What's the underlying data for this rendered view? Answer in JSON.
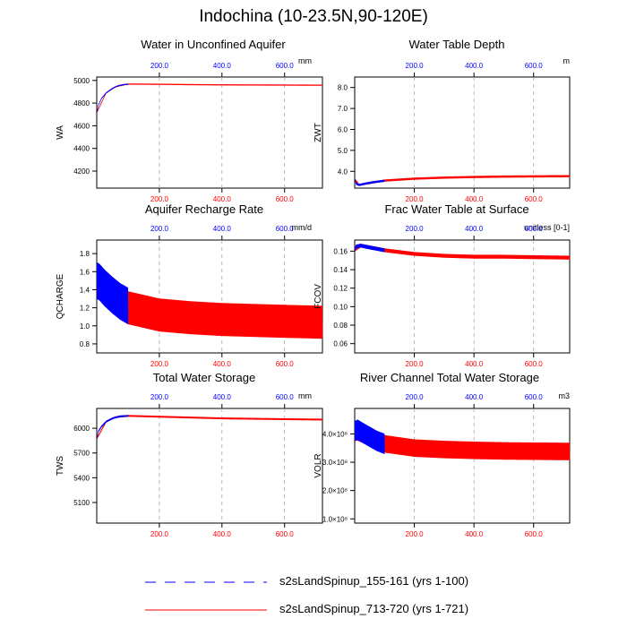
{
  "figure": {
    "title": "Indochina (10-23.5N,90-120E)",
    "legend": [
      {
        "label": "s2sLandSpinup_155-161 (yrs 1-100)",
        "color": "#0000ff",
        "style": "dashed"
      },
      {
        "label": "s2sLandSpinup_713-720 (yrs 1-721)",
        "color": "#ff0000",
        "style": "solid"
      }
    ]
  },
  "chart_data": [
    {
      "id": "wa",
      "type": "line",
      "title": "Water in Unconfined Aquifer",
      "units": "mm",
      "ylabel": "WA",
      "xlim": [
        0,
        721
      ],
      "ylim": [
        4050,
        5030
      ],
      "yticks": [
        4200,
        4400,
        4600,
        4800,
        5000
      ],
      "ytick_labels": [
        "4200",
        "4400",
        "4600",
        "4800",
        "5000"
      ],
      "xticks_top": [
        200,
        400,
        600
      ],
      "xtick_labels_top": [
        "200.0",
        "400.0",
        "600.0"
      ],
      "xticks_bottom": [
        200,
        400,
        600
      ],
      "xtick_labels_bottom": [
        "200.0",
        "400.0",
        "600.0"
      ],
      "series": [
        {
          "name": "s2sLandSpinup_155-161 (yrs 1-100)",
          "color": "#0000ff",
          "x": [
            1,
            5,
            15,
            30,
            50,
            70,
            90,
            100
          ],
          "y": [
            4720,
            4780,
            4840,
            4890,
            4930,
            4955,
            4965,
            4965
          ],
          "amp": 3
        },
        {
          "name": "s2sLandSpinup_713-720 (yrs 1-721)",
          "color": "#ff0000",
          "x": [
            1,
            30,
            60,
            100,
            200,
            300,
            400,
            500,
            600,
            721
          ],
          "y": [
            4720,
            4890,
            4945,
            4968,
            4966,
            4963,
            4961,
            4960,
            4959,
            4958
          ],
          "amp": 3
        }
      ]
    },
    {
      "id": "zwt",
      "type": "line",
      "title": "Water Table Depth",
      "units": "m",
      "ylabel": "ZWT",
      "xlim": [
        0,
        721
      ],
      "ylim": [
        3.2,
        8.5
      ],
      "yticks": [
        4,
        5,
        6,
        7,
        8
      ],
      "ytick_labels": [
        "4.0",
        "5.0",
        "6.0",
        "7.0",
        "8.0"
      ],
      "xticks_top": [
        200,
        400,
        600
      ],
      "xtick_labels_top": [
        "200.0",
        "400.0",
        "600.0"
      ],
      "xticks_bottom": [
        200,
        400,
        600
      ],
      "xtick_labels_bottom": [
        "200.0",
        "400.0",
        "600.0"
      ],
      "series": [
        {
          "name": "s2sLandSpinup_155-161 (yrs 1-100)",
          "color": "#0000ff",
          "x": [
            1,
            5,
            15,
            30,
            60,
            100
          ],
          "y": [
            3.6,
            3.4,
            3.35,
            3.4,
            3.48,
            3.55
          ],
          "amp": 0.04
        },
        {
          "name": "s2sLandSpinup_713-720 (yrs 1-721)",
          "color": "#ff0000",
          "x": [
            1,
            15,
            40,
            100,
            200,
            300,
            400,
            500,
            600,
            721
          ],
          "y": [
            3.6,
            3.35,
            3.42,
            3.56,
            3.65,
            3.7,
            3.73,
            3.75,
            3.76,
            3.77
          ],
          "amp": 0.04
        }
      ]
    },
    {
      "id": "qcharge",
      "type": "line",
      "title": "Aquifer Recharge Rate",
      "units": "mm/d",
      "ylabel": "QCHARGE",
      "xlim": [
        0,
        721
      ],
      "ylim": [
        0.7,
        1.95
      ],
      "yticks": [
        0.8,
        1.0,
        1.2,
        1.4,
        1.6,
        1.8
      ],
      "ytick_labels": [
        "0.8",
        "1.0",
        "1.2",
        "1.4",
        "1.6",
        "1.8"
      ],
      "xticks_top": [
        200,
        400,
        600
      ],
      "xtick_labels_top": [
        "200.0",
        "400.0",
        "600.0"
      ],
      "xticks_bottom": [
        200,
        400,
        600
      ],
      "xtick_labels_bottom": [
        "200.0",
        "400.0",
        "600.0"
      ],
      "series": [
        {
          "name": "s2sLandSpinup_155-161 (yrs 1-100)",
          "color": "#0000ff",
          "x": [
            1,
            10,
            25,
            50,
            75,
            100
          ],
          "y": [
            1.5,
            1.48,
            1.42,
            1.34,
            1.27,
            1.22
          ],
          "amp": 0.2
        },
        {
          "name": "s2sLandSpinup_713-720 (yrs 1-721)",
          "color": "#ff0000",
          "x": [
            1,
            50,
            100,
            200,
            300,
            400,
            500,
            600,
            721
          ],
          "y": [
            1.5,
            1.34,
            1.2,
            1.12,
            1.09,
            1.07,
            1.06,
            1.05,
            1.04
          ],
          "amp": 0.18
        }
      ]
    },
    {
      "id": "fcov",
      "type": "line",
      "title": "Frac Water Table at Surface",
      "units": "unitless [0-1]",
      "ylabel": "FCOV",
      "xlim": [
        0,
        721
      ],
      "ylim": [
        0.05,
        0.172
      ],
      "yticks": [
        0.06,
        0.08,
        0.1,
        0.12,
        0.14,
        0.16
      ],
      "ytick_labels": [
        "0.06",
        "0.08",
        "0.10",
        "0.12",
        "0.14",
        "0.16"
      ],
      "xticks_top": [
        200,
        400,
        600
      ],
      "xtick_labels_top": [
        "200.0",
        "400.0",
        "600.0"
      ],
      "xticks_bottom": [
        200,
        400,
        600
      ],
      "xtick_labels_bottom": [
        "200.0",
        "400.0",
        "600.0"
      ],
      "series": [
        {
          "name": "s2sLandSpinup_155-161 (yrs 1-100)",
          "color": "#0000ff",
          "x": [
            1,
            5,
            20,
            50,
            100
          ],
          "y": [
            0.162,
            0.165,
            0.166,
            0.164,
            0.161
          ],
          "amp": 0.0018
        },
        {
          "name": "s2sLandSpinup_713-720 (yrs 1-721)",
          "color": "#ff0000",
          "x": [
            1,
            20,
            100,
            200,
            300,
            400,
            500,
            600,
            721
          ],
          "y": [
            0.162,
            0.166,
            0.161,
            0.157,
            0.155,
            0.154,
            0.154,
            0.1535,
            0.153
          ],
          "amp": 0.0018
        }
      ]
    },
    {
      "id": "tws",
      "type": "line",
      "title": "Total Water Storage",
      "units": "mm",
      "ylabel": "TWS",
      "xlim": [
        0,
        721
      ],
      "ylim": [
        4850,
        6240
      ],
      "yticks": [
        5100,
        5400,
        5700,
        6000
      ],
      "ytick_labels": [
        "5100",
        "5400",
        "5700",
        "6000"
      ],
      "xticks_top": [
        200,
        400,
        600
      ],
      "xtick_labels_top": [
        "200.0",
        "400.0",
        "600.0"
      ],
      "xticks_bottom": [
        200,
        400,
        600
      ],
      "xtick_labels_bottom": [
        "200.0",
        "400.0",
        "600.0"
      ],
      "series": [
        {
          "name": "s2sLandSpinup_155-161 (yrs 1-100)",
          "color": "#0000ff",
          "x": [
            1,
            5,
            15,
            30,
            50,
            75,
            100
          ],
          "y": [
            5880,
            5960,
            6020,
            6080,
            6120,
            6145,
            6150
          ],
          "amp": 8
        },
        {
          "name": "s2sLandSpinup_713-720 (yrs 1-721)",
          "color": "#ff0000",
          "x": [
            1,
            30,
            60,
            100,
            200,
            300,
            400,
            500,
            600,
            721
          ],
          "y": [
            5880,
            6080,
            6135,
            6150,
            6140,
            6130,
            6120,
            6115,
            6110,
            6105
          ],
          "amp": 8
        }
      ]
    },
    {
      "id": "volr",
      "type": "line",
      "title": "River Channel Total Water Storage",
      "units": "m3",
      "ylabel": "VOLR",
      "xlim": [
        0,
        721
      ],
      "ylim": [
        85000000.0,
        490000000.0
      ],
      "yticks": [
        100000000.0,
        200000000.0,
        300000000.0,
        400000000.0
      ],
      "ytick_labels": [
        "1.0×10⁸",
        "2.0×10⁸",
        "3.0×10⁸",
        "4.0×10⁸"
      ],
      "xticks_top": [
        200,
        400,
        600
      ],
      "xtick_labels_top": [
        "200.0",
        "400.0",
        "600.0"
      ],
      "xticks_bottom": [
        200,
        400,
        600
      ],
      "xtick_labels_bottom": [
        "200.0",
        "400.0",
        "600.0"
      ],
      "series": [
        {
          "name": "s2sLandSpinup_155-161 (yrs 1-100)",
          "color": "#0000ff",
          "x": [
            1,
            10,
            25,
            50,
            75,
            100
          ],
          "y": [
            410000000.0,
            415000000.0,
            405000000.0,
            390000000.0,
            375000000.0,
            365000000.0
          ],
          "amp": 35000000.0
        },
        {
          "name": "s2sLandSpinup_713-720 (yrs 1-721)",
          "color": "#ff0000",
          "x": [
            1,
            50,
            100,
            200,
            300,
            400,
            500,
            600,
            721
          ],
          "y": [
            410000000.0,
            390000000.0,
            365000000.0,
            350000000.0,
            345000000.0,
            342000000.0,
            340000000.0,
            339000000.0,
            338000000.0
          ],
          "amp": 30000000.0
        }
      ]
    }
  ]
}
